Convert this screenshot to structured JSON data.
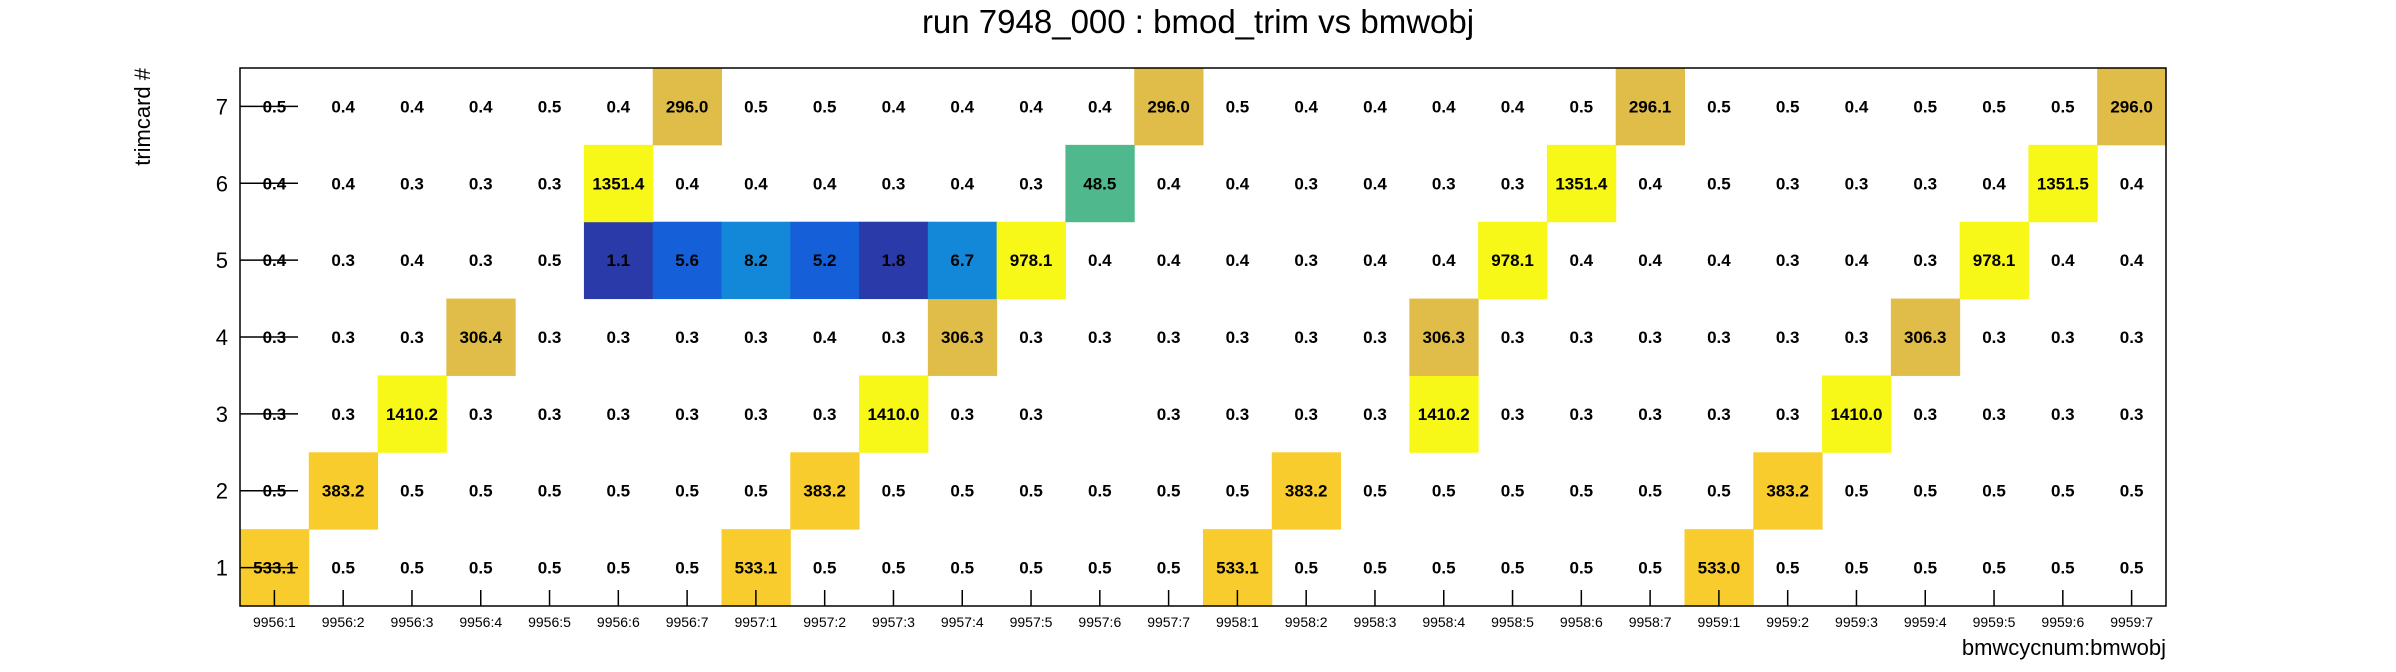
{
  "chart_data": {
    "type": "heatmap",
    "title": "run 7948_000 : bmod_trim vs bmwobj",
    "xlabel": "bmwcycnum:bmwobj",
    "ylabel": "trimcard #",
    "x_categories": [
      "9956:1",
      "9956:2",
      "9956:3",
      "9956:4",
      "9956:5",
      "9956:6",
      "9956:7",
      "9957:1",
      "9957:2",
      "9957:3",
      "9957:4",
      "9957:5",
      "9957:6",
      "9957:7",
      "9958:1",
      "9958:2",
      "9958:3",
      "9958:4",
      "9958:5",
      "9958:6",
      "9958:7",
      "9959:1",
      "9959:2",
      "9959:3",
      "9959:4",
      "9959:5",
      "9959:6",
      "9959:7"
    ],
    "y_categories": [
      "1",
      "2",
      "3",
      "4",
      "5",
      "6",
      "7"
    ],
    "values": [
      [
        533.1,
        0.5,
        0.5,
        0.5,
        0.5,
        0.5,
        0.5,
        533.1,
        0.5,
        0.5,
        0.5,
        0.5,
        0.5,
        0.5,
        533.1,
        0.5,
        0.5,
        0.5,
        0.5,
        0.5,
        0.5,
        533.0,
        0.5,
        0.5,
        0.5,
        0.5,
        0.5,
        0.5
      ],
      [
        0.5,
        383.2,
        0.5,
        0.5,
        0.5,
        0.5,
        0.5,
        0.5,
        383.2,
        0.5,
        0.5,
        0.5,
        0.5,
        0.5,
        0.5,
        383.2,
        0.5,
        0.5,
        0.5,
        0.5,
        0.5,
        0.5,
        383.2,
        0.5,
        0.5,
        0.5,
        0.5,
        0.5
      ],
      [
        0.3,
        0.3,
        1410.2,
        0.3,
        0.3,
        0.3,
        0.3,
        0.3,
        0.3,
        1410.0,
        0.3,
        0.3,
        null,
        0.3,
        0.3,
        0.3,
        0.3,
        1410.2,
        0.3,
        0.3,
        0.3,
        0.3,
        0.3,
        1410.0,
        0.3,
        0.3,
        0.3,
        0.3
      ],
      [
        0.3,
        0.3,
        0.3,
        306.4,
        0.3,
        0.3,
        0.3,
        0.3,
        0.4,
        0.3,
        306.3,
        0.3,
        0.3,
        0.3,
        0.3,
        0.3,
        0.3,
        306.3,
        0.3,
        0.3,
        0.3,
        0.3,
        0.3,
        0.3,
        306.3,
        0.3,
        0.3,
        0.3
      ],
      [
        0.4,
        0.3,
        0.4,
        0.3,
        0.5,
        1.1,
        5.6,
        8.2,
        5.2,
        1.8,
        6.7,
        978.1,
        0.4,
        0.4,
        0.4,
        0.3,
        0.4,
        0.4,
        978.1,
        0.4,
        0.4,
        0.4,
        0.3,
        0.4,
        0.3,
        978.1,
        0.4,
        0.4
      ],
      [
        0.4,
        0.4,
        0.3,
        0.3,
        0.3,
        1351.4,
        0.4,
        0.4,
        0.4,
        0.3,
        0.4,
        0.3,
        48.5,
        0.4,
        0.4,
        0.3,
        0.4,
        0.3,
        0.3,
        1351.4,
        0.4,
        0.5,
        0.3,
        0.3,
        0.3,
        0.4,
        1351.5,
        0.4
      ],
      [
        0.5,
        0.4,
        0.4,
        0.4,
        0.5,
        0.4,
        296.0,
        0.5,
        0.5,
        0.4,
        0.4,
        0.4,
        0.4,
        296.0,
        0.5,
        0.4,
        0.4,
        0.4,
        0.4,
        0.5,
        296.1,
        0.5,
        0.5,
        0.4,
        0.5,
        0.5,
        0.5,
        296.0
      ]
    ],
    "colors": {
      "low": "#2a3aa8",
      "mid_blue": "#1560d8",
      "sky": "#1488d8",
      "teal": "#4fb88c",
      "gold": "#e0bc48",
      "amber": "#f8cc2c",
      "yellow": "#f8f818"
    },
    "grid": false,
    "legend": "none"
  }
}
